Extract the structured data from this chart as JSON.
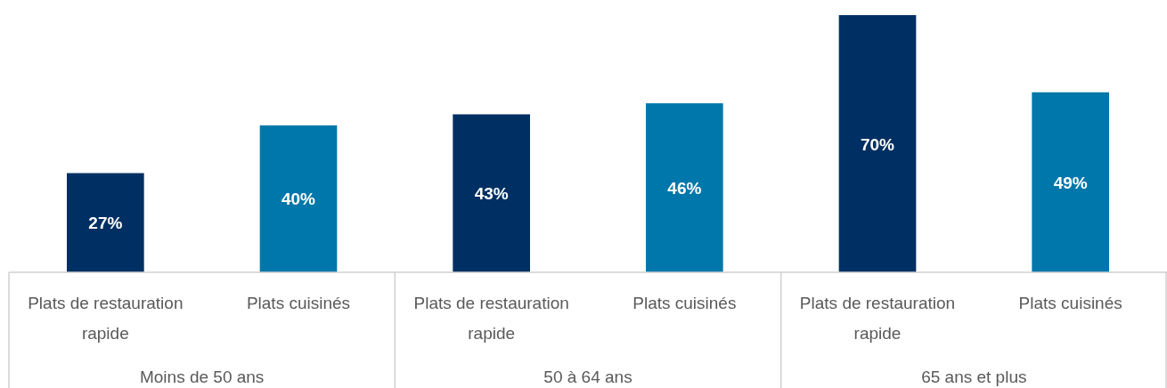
{
  "chart_data": {
    "type": "bar",
    "categories": [
      "Plats de restauration rapide",
      "Plats cuisinés",
      "Plats de restauration rapide",
      "Plats cuisinés",
      "Plats de restauration rapide",
      "Plats cuisinés"
    ],
    "values": [
      27,
      40,
      43,
      46,
      70,
      49
    ],
    "colors": [
      "#003063",
      "#0077aa",
      "#003063",
      "#0077aa",
      "#003063",
      "#0077aa"
    ],
    "value_labels": [
      "27%",
      "40%",
      "43%",
      "46%",
      "70%",
      "49%"
    ],
    "annotations": [
      "Moins de 50 ans",
      "50 à 64 ans",
      "65 ans et plus"
    ]
  }
}
